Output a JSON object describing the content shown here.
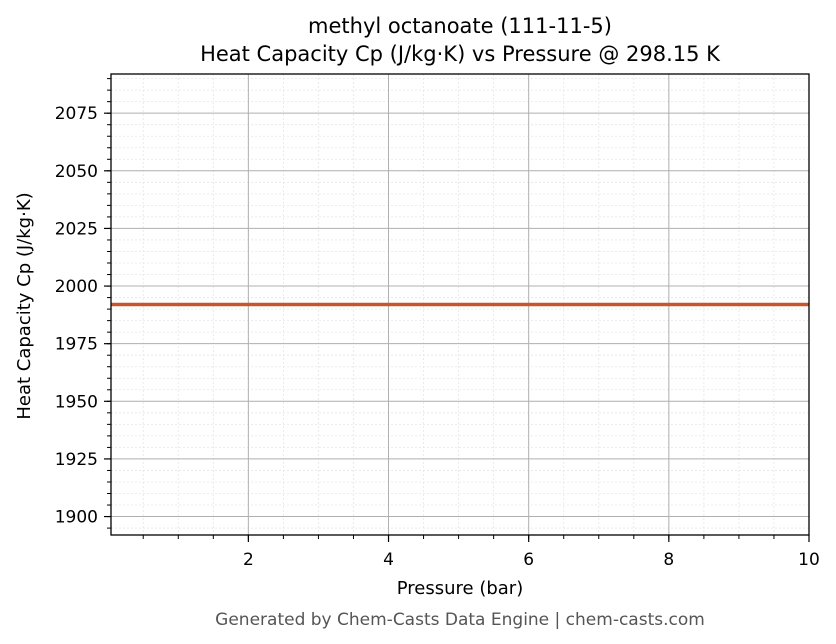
{
  "chart_data": {
    "type": "line",
    "title": "methyl octanoate (111-11-5)",
    "subtitle": "Heat Capacity Cp (J/kg·K) vs Pressure @ 298.15 K",
    "xlabel": "Pressure (bar)",
    "ylabel": "Heat Capacity Cp (J/kg·K)",
    "xlim": [
      0.04,
      10
    ],
    "ylim": [
      1892,
      2092
    ],
    "x_ticks": [
      2,
      4,
      6,
      8,
      10
    ],
    "y_ticks": [
      1900,
      1925,
      1950,
      1975,
      2000,
      2025,
      2050,
      2075
    ],
    "grid": true,
    "series": [
      {
        "x": [
          0.04,
          10
        ],
        "y": [
          1992,
          1992
        ]
      }
    ],
    "colors": {
      "line": "#c8562a",
      "major_grid": "#b0b0b0",
      "minor_grid": "#e6e6e6"
    }
  },
  "footer": "Generated by Chem-Casts Data Engine | chem-casts.com"
}
